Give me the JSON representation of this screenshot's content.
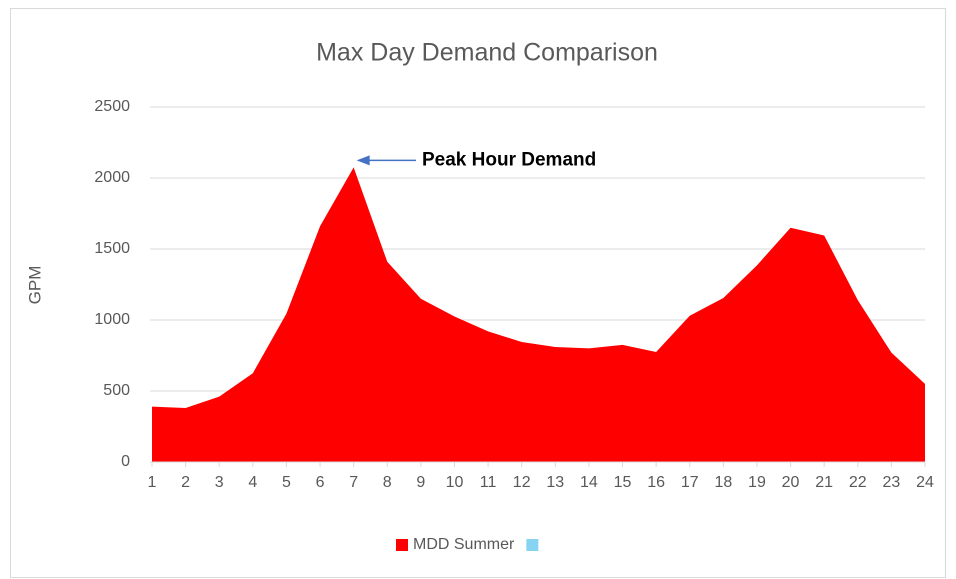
{
  "chart_data": {
    "type": "area",
    "title": "Max Day Demand Comparison",
    "y_label": "GPM",
    "categories": [
      "1",
      "2",
      "3",
      "4",
      "5",
      "6",
      "7",
      "8",
      "9",
      "10",
      "11",
      "12",
      "13",
      "14",
      "15",
      "16",
      "17",
      "18",
      "19",
      "20",
      "21",
      "22",
      "23",
      "24"
    ],
    "series": [
      {
        "name": "MDD Summer",
        "color": "#ff0000",
        "values": [
          390,
          380,
          460,
          625,
          1045,
          1660,
          2075,
          1410,
          1150,
          1025,
          920,
          845,
          810,
          800,
          825,
          775,
          1030,
          1155,
          1385,
          1650,
          1595,
          1140,
          770,
          550
        ]
      },
      {
        "color": "#87d4f2"
      }
    ],
    "ylim": [
      0,
      2500
    ],
    "yticks": [
      0,
      500,
      1000,
      1500,
      2000,
      2500
    ],
    "grid": true,
    "annotation": {
      "text": "Peak Hour Demand",
      "index": 6
    },
    "legend": "bottom"
  }
}
